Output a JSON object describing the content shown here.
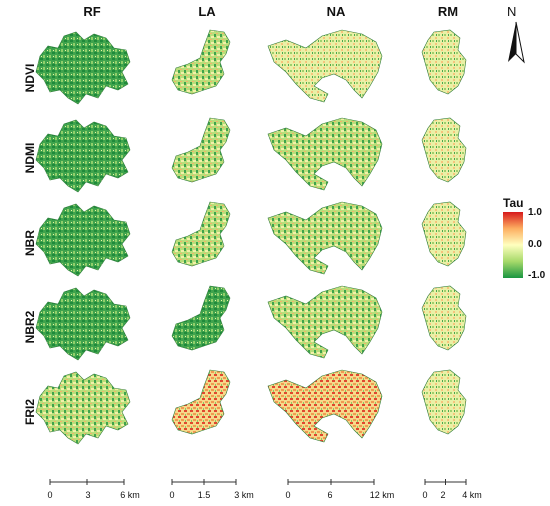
{
  "columns": [
    "RF",
    "LA",
    "NA",
    "RM"
  ],
  "rows": [
    "NDVI",
    "NDMI",
    "NBR",
    "NBR2",
    "FRI2"
  ],
  "north_label": "N",
  "legend": {
    "title": "Tau",
    "ticks": [
      "1.0",
      "0.0",
      "-1.0"
    ],
    "range": [
      -1.0,
      1.0
    ],
    "colors": [
      "#1a9641",
      "#a6d96a",
      "#ffffbf",
      "#fdae61",
      "#d7191c"
    ]
  },
  "scale_bars": [
    {
      "column": "RF",
      "ticks": [
        "0",
        "3",
        "6 km"
      ]
    },
    {
      "column": "LA",
      "ticks": [
        "0",
        "1.5",
        "3 km"
      ]
    },
    {
      "column": "NA",
      "ticks": [
        "0",
        "6",
        "12 km"
      ]
    },
    {
      "column": "RM",
      "ticks": [
        "0",
        "2",
        "4 km"
      ]
    }
  ]
}
